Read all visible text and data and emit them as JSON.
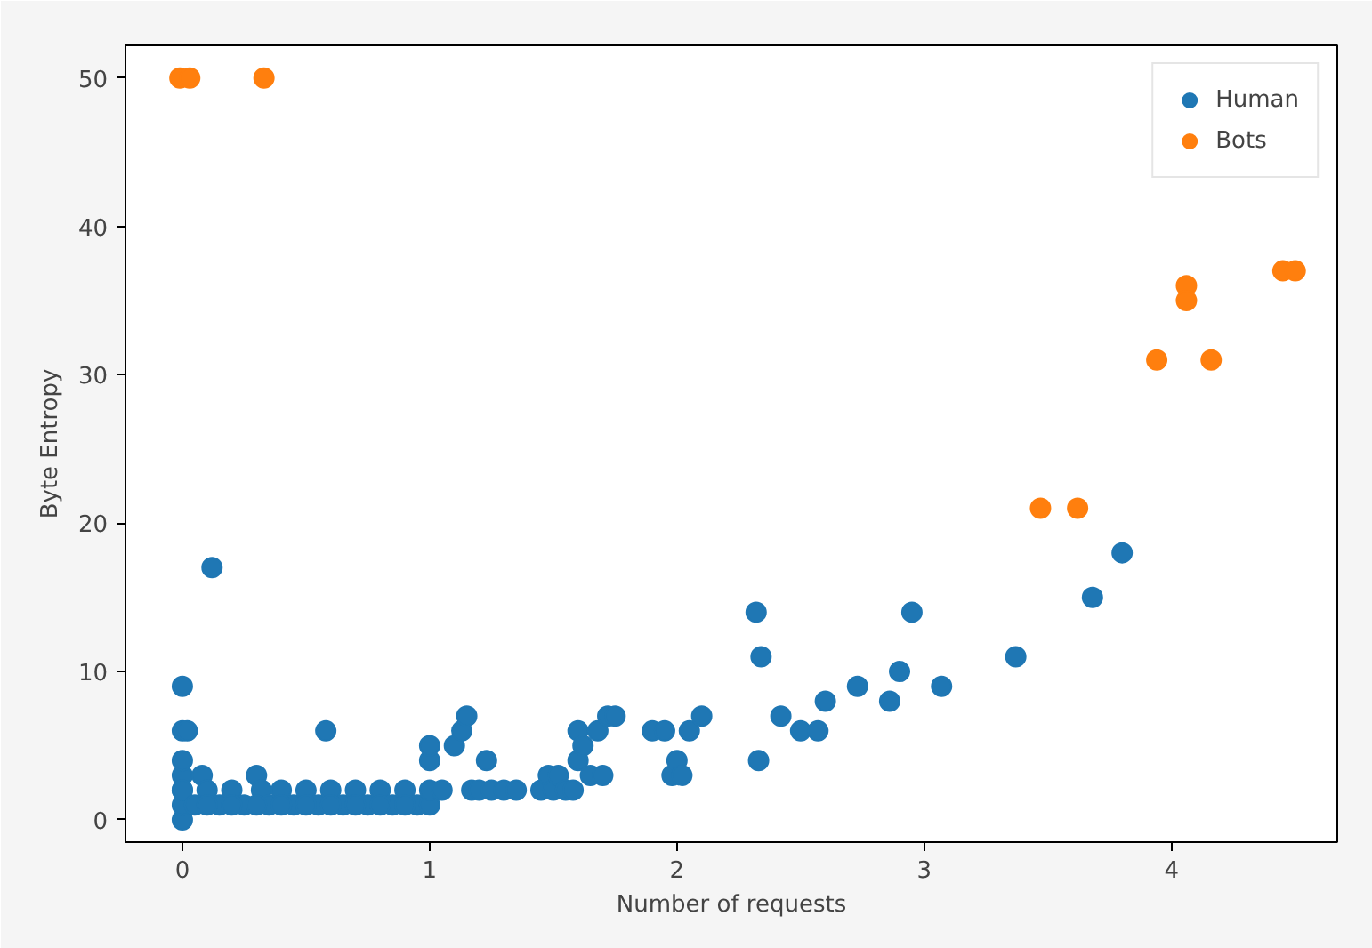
{
  "chart_data": {
    "type": "scatter",
    "xlabel": "Number of requests",
    "ylabel": "Byte Entropy",
    "xlim": [
      -0.23,
      4.67
    ],
    "ylim": [
      -1.5,
      52.2
    ],
    "xticks": [
      0,
      1,
      2,
      3,
      4
    ],
    "yticks": [
      0,
      10,
      20,
      30,
      40,
      50
    ],
    "grid": false,
    "legend": "top right",
    "marker": "circle",
    "series": [
      {
        "name": "Human",
        "color": "#1f77b4",
        "x": [
          0,
          0,
          0,
          0,
          0,
          0,
          0,
          0,
          0.02,
          0.12,
          0.05,
          0.08,
          0.1,
          0.15,
          0.2,
          0.25,
          0.3,
          0.32,
          0.35,
          0.4,
          0.45,
          0.5,
          0.55,
          0.58,
          0.6,
          0.65,
          0.7,
          0.75,
          0.8,
          0.85,
          0.9,
          0.95,
          1.0,
          1.0,
          1.0,
          1.0,
          1.05,
          1.1,
          1.13,
          1.15,
          1.17,
          1.2,
          1.23,
          1.25,
          1.3,
          1.35,
          1.45,
          1.48,
          1.5,
          1.52,
          1.55,
          1.58,
          1.6,
          1.6,
          1.62,
          1.65,
          1.68,
          1.7,
          1.72,
          1.75,
          1.9,
          1.95,
          1.98,
          2.0,
          2.02,
          2.05,
          2.1,
          2.32,
          2.33,
          2.34,
          2.42,
          2.5,
          2.57,
          2.6,
          2.73,
          2.86,
          2.9,
          2.95,
          3.07,
          3.37,
          3.68,
          3.8,
          0.1,
          0.2,
          0.3,
          0.4,
          0.5,
          0.6,
          0.7,
          0.8,
          0.9
        ],
        "values": [
          0,
          1,
          2,
          3,
          4,
          6,
          9,
          2,
          6,
          17,
          1,
          3,
          2,
          1,
          2,
          1,
          3,
          2,
          1,
          2,
          1,
          2,
          1,
          6,
          2,
          1,
          2,
          1,
          2,
          1,
          2,
          1,
          1,
          2,
          4,
          5,
          2,
          5,
          6,
          7,
          2,
          2,
          4,
          2,
          2,
          2,
          2,
          3,
          2,
          3,
          2,
          2,
          4,
          6,
          5,
          3,
          6,
          3,
          7,
          7,
          6,
          6,
          3,
          4,
          3,
          6,
          7,
          14,
          4,
          11,
          7,
          6,
          6,
          8,
          9,
          8,
          10,
          14,
          9,
          11,
          15,
          18,
          1,
          1,
          1,
          1,
          1,
          1,
          1,
          1,
          1
        ]
      },
      {
        "name": "Bots",
        "color": "#ff7f0e",
        "x": [
          -0.01,
          0.03,
          0.33,
          3.47,
          3.62,
          3.94,
          4.06,
          4.06,
          4.16,
          4.45,
          4.5
        ],
        "values": [
          50,
          50,
          50,
          21,
          21,
          31,
          36,
          35,
          31,
          37,
          37
        ]
      }
    ]
  }
}
